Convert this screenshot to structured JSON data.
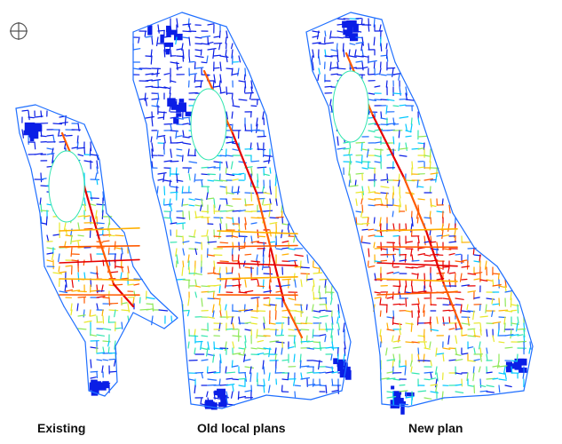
{
  "figure": {
    "north_arrow_icon": "north-crosshair-icon",
    "color_scale": [
      "#0a1ee6",
      "#1f6fff",
      "#00c8ff",
      "#33e6b0",
      "#8fe85a",
      "#e8e82c",
      "#ffb000",
      "#ff5a00",
      "#e60000"
    ],
    "panels": [
      {
        "label": "Existing"
      },
      {
        "label": "Old local plans"
      },
      {
        "label": "New plan"
      }
    ]
  }
}
